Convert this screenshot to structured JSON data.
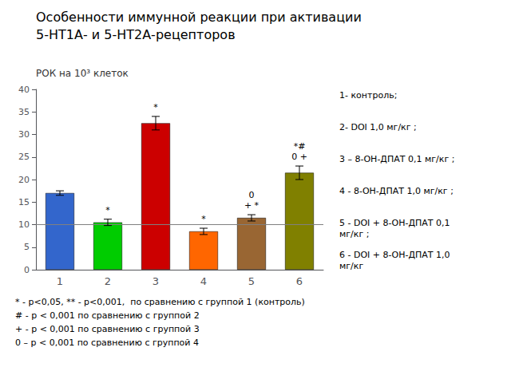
{
  "chart_data": {
    "type": "bar",
    "title": "Особенности иммунной реакции при активации",
    "subtitle": "5-НТ1А- и 5-НТ2А-рецепторов",
    "y_label": "РОК на 10³ клеток",
    "categories": [
      "1",
      "2",
      "3",
      "4",
      "5",
      "6"
    ],
    "values": [
      17.0,
      10.5,
      32.5,
      8.5,
      11.5,
      21.5
    ],
    "errors": [
      0.5,
      0.7,
      1.5,
      0.7,
      0.7,
      1.5
    ],
    "colors": [
      "#3366cc",
      "#00cc00",
      "#cc0000",
      "#ff6600",
      "#996633",
      "#808000"
    ],
    "annotations": [
      null,
      "*",
      "*",
      "*",
      "0\n+ *",
      "*#\n0 +"
    ],
    "reference_line": 10,
    "legend_texts": [
      "1- контроль;",
      "2- DOI 1,0 мг/кг ;",
      "3 – 8-ОН-ДПАТ 0,1 мг/кг ;",
      "4 - 8-ОН-ДПАТ 1,0 мг/кг ;",
      "5 - DOI + 8-ОН-ДПАТ 0,1\nмг/кг ;",
      "6 - DOI + 8-ОН-ДПАТ 1,0\nмг/кг"
    ],
    "footnote": "* - p<0,05, ** - p<0,001,  по сравнению с группой 1 (контроль)\n# - р < 0,001 по сравнению с группой 2\n+ - р < 0,001 по сравнению с группой 3\n0 – р < 0,001 по сравнению с группой 4",
    "ylim": [
      0,
      40
    ],
    "yticks": [
      0,
      5,
      10,
      15,
      20,
      25,
      30,
      35,
      40
    ],
    "grid": false
  }
}
